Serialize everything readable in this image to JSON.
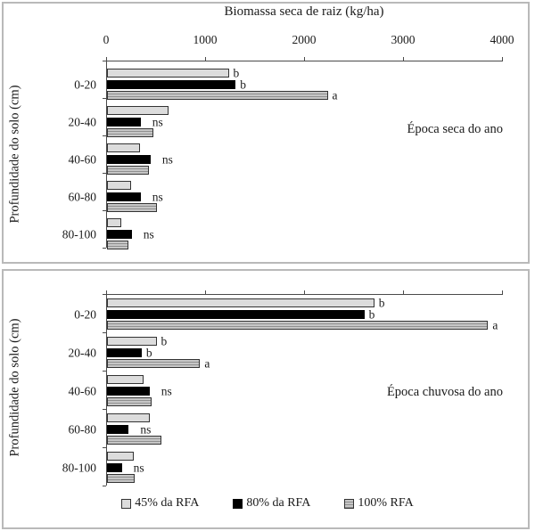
{
  "figure": {
    "legend": [
      {
        "label": "45% da RFA",
        "style": "light"
      },
      {
        "label": "80% da RFA",
        "style": "black"
      },
      {
        "label": "100% RFA",
        "style": "striped"
      }
    ],
    "colors": {
      "bar_45_fill": "#dcdcdc",
      "bar_80_fill": "#000000",
      "bar_100_base": "#c6c6c6",
      "bar_100_stripe": "#8f8f8f",
      "bar_border": "#333333",
      "panel_border": "#b9b9b9",
      "text": "#1a1a1a"
    }
  },
  "chart_data": [
    {
      "type": "bar",
      "orientation": "horizontal",
      "title": "Biomassa seca de raiz (kg/ha)",
      "ylabel": "Profundidade do solo (cm)",
      "annotation": "Época seca do ano",
      "xlim": [
        0,
        4000
      ],
      "x_ticks": [
        0,
        1000,
        2000,
        3000,
        4000
      ],
      "series_names": [
        "45% da RFA",
        "80% da RFA",
        "100% RFA"
      ],
      "categories": [
        "0-20",
        "20-40",
        "40-60",
        "60-80",
        "80-100"
      ],
      "groups": [
        {
          "depth": "0-20",
          "values": [
            1230,
            1300,
            2230
          ],
          "sig": [
            "b",
            "b",
            "a"
          ]
        },
        {
          "depth": "20-40",
          "values": [
            620,
            340,
            470
          ],
          "sig": "ns"
        },
        {
          "depth": "40-60",
          "values": [
            330,
            440,
            420
          ],
          "sig": "ns"
        },
        {
          "depth": "60-80",
          "values": [
            240,
            340,
            500
          ],
          "sig": "ns"
        },
        {
          "depth": "80-100",
          "values": [
            140,
            250,
            220
          ],
          "sig": "ns"
        }
      ]
    },
    {
      "type": "bar",
      "orientation": "horizontal",
      "title": "Biomassa seca de raiz (kg/ha)",
      "ylabel": "Profundidade do solo (cm)",
      "annotation": "Época chuvosa do ano",
      "xlim": [
        0,
        4000
      ],
      "x_ticks": [
        0,
        1000,
        2000,
        3000,
        4000
      ],
      "series_names": [
        "45% da RFA",
        "80% da RFA",
        "100% RFA"
      ],
      "categories": [
        "0-20",
        "20-40",
        "40-60",
        "60-80",
        "80-100"
      ],
      "groups": [
        {
          "depth": "0-20",
          "values": [
            2700,
            2600,
            3850
          ],
          "sig": [
            "b",
            "b",
            "a"
          ]
        },
        {
          "depth": "20-40",
          "values": [
            500,
            350,
            940
          ],
          "sig": [
            "b",
            "b",
            "a"
          ]
        },
        {
          "depth": "40-60",
          "values": [
            370,
            430,
            450
          ],
          "sig": "ns"
        },
        {
          "depth": "60-80",
          "values": [
            430,
            220,
            550
          ],
          "sig": "ns"
        },
        {
          "depth": "80-100",
          "values": [
            270,
            150,
            280
          ],
          "sig": "ns"
        }
      ]
    }
  ]
}
